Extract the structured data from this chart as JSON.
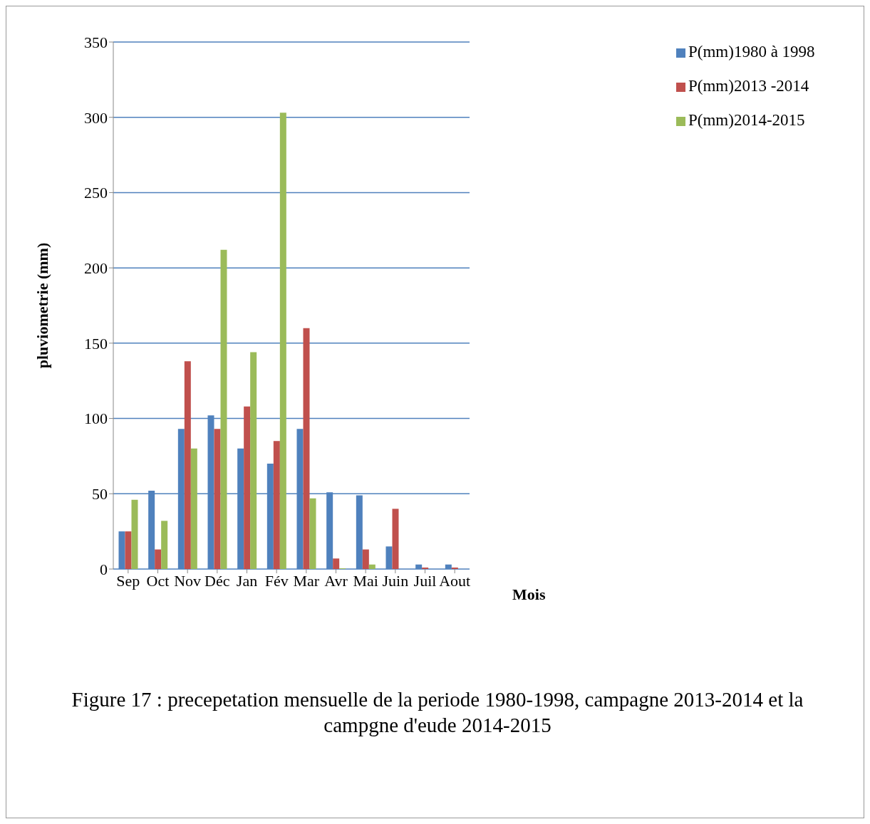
{
  "chart_data": {
    "type": "bar",
    "title": "Figure 17 : precepetation  mensuelle de la periode 1980-1998, campagne 2013-2014 et la campgne d'eude 2014-2015",
    "xlabel": "Mois",
    "ylabel": "pluviometrie (mm)",
    "categories": [
      "Sep",
      "Oct",
      "Nov",
      "Déc",
      "Jan",
      "Fév",
      "Mar",
      "Avr",
      "Mai",
      "Juin",
      "Juil",
      "Aout"
    ],
    "series": [
      {
        "name": "P(mm)1980 à 1998",
        "color": "#4f81bd",
        "values": [
          25,
          52,
          93,
          102,
          80,
          70,
          93,
          51,
          49,
          15,
          3,
          3
        ]
      },
      {
        "name": "P(mm)2013 -2014",
        "color": "#c0504d",
        "values": [
          25,
          13,
          138,
          93,
          108,
          85,
          160,
          7,
          13,
          40,
          1,
          1
        ]
      },
      {
        "name": "P(mm)2014-2015",
        "color": "#9bbb59",
        "values": [
          46,
          32,
          80,
          212,
          144,
          303,
          47,
          0.5,
          3,
          0,
          0,
          0
        ]
      }
    ],
    "ylim": [
      0,
      350
    ],
    "yticks": [
      0,
      50,
      100,
      150,
      200,
      250,
      300,
      350
    ],
    "grid": "y",
    "legend": "right"
  }
}
